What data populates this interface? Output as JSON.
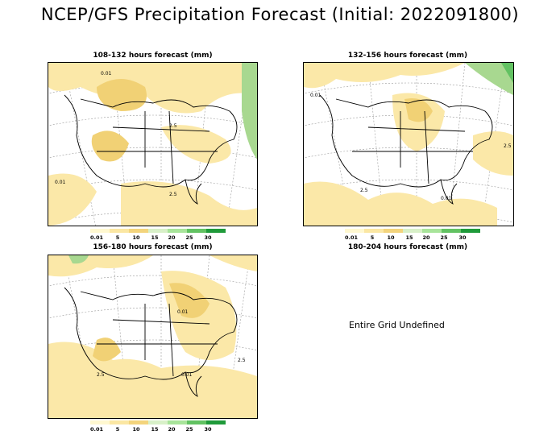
{
  "title": "NCEP/GFS Precipitation Forecast (Initial: 2022091800)",
  "panels": [
    {
      "title": "108-132 hours forecast (mm)"
    },
    {
      "title": "132-156 hours forecast (mm)"
    },
    {
      "title": "156-180 hours forecast (mm)"
    },
    {
      "title": "180-204 hours forecast (mm)",
      "message": "Entire Grid Undefined"
    }
  ],
  "legend": {
    "ticks": [
      "0.01",
      "5",
      "10",
      "15",
      "20",
      "25",
      "30"
    ],
    "colors": [
      "#fff8d0",
      "#fbe7a3",
      "#f3d47c",
      "#d8f0c8",
      "#a8e49a",
      "#62c262",
      "#1f9a3a"
    ]
  },
  "contour_labels": [
    "0.01",
    "2.5"
  ],
  "colors": {
    "precip_light": "#fbe8a8",
    "precip_medium": "#f1d175",
    "precip_high": "#a8d890",
    "grid": "#888888",
    "coast": "#000000"
  }
}
